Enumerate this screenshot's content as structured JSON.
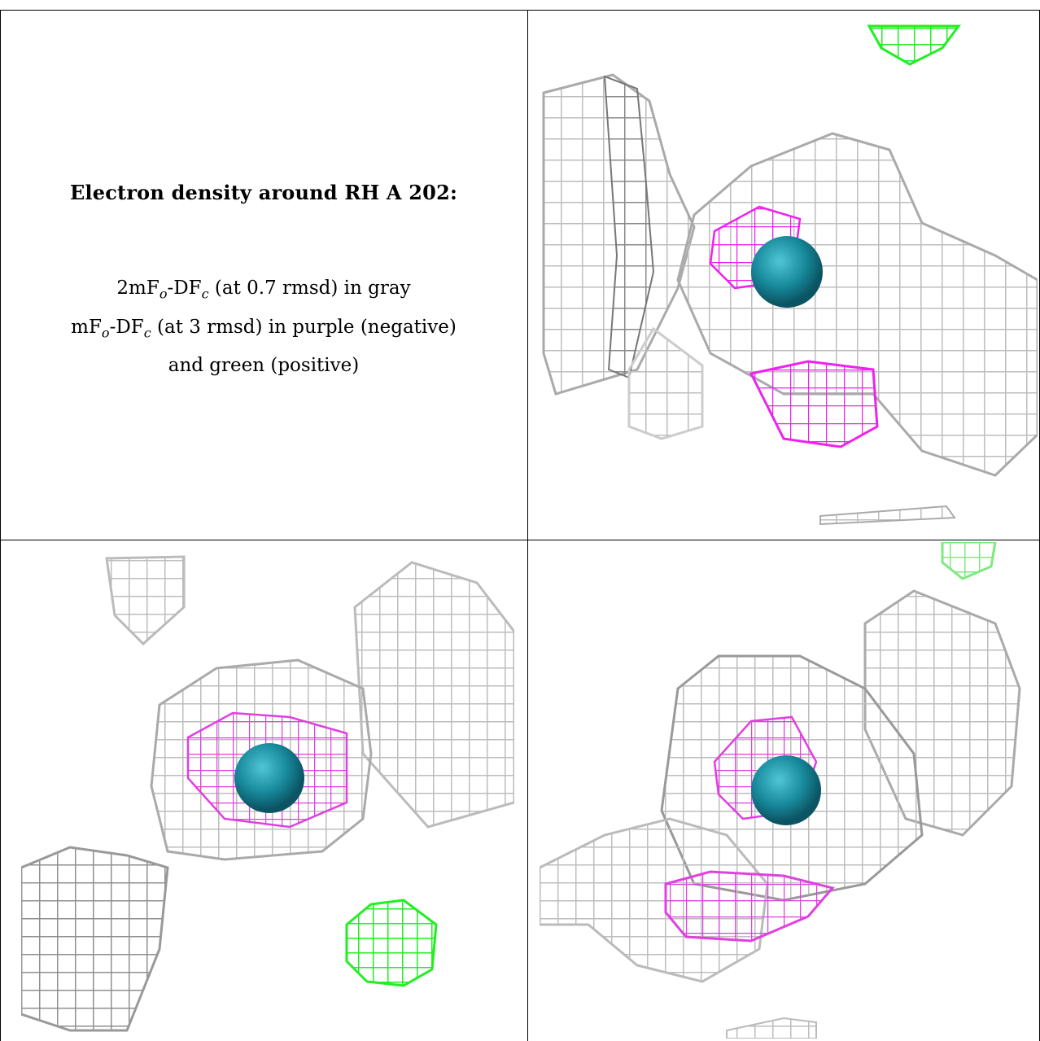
{
  "caption": {
    "title": "Electron density around RH A 202:",
    "line1_prefix": "2mF",
    "line1_sub1": "o",
    "line1_mid": "-DF",
    "line1_sub2": "c",
    "line1_suffix": " (at 0.7 rmsd) in gray",
    "line2_prefix": "mF",
    "line2_sub1": "o",
    "line2_mid": "-DF",
    "line2_sub2": "c",
    "line2_suffix": " (at 3 rmsd) in purple (negative)",
    "line3": "and green (positive)"
  },
  "colors": {
    "gray_mesh": "#b8b8b8",
    "dark_mesh": "#6e6e6e",
    "negative": "#ee22ee",
    "positive": "#22ee22",
    "atom": "#1a8fa0"
  },
  "panels": [
    "top-right-view",
    "bottom-left-view",
    "bottom-right-view"
  ]
}
